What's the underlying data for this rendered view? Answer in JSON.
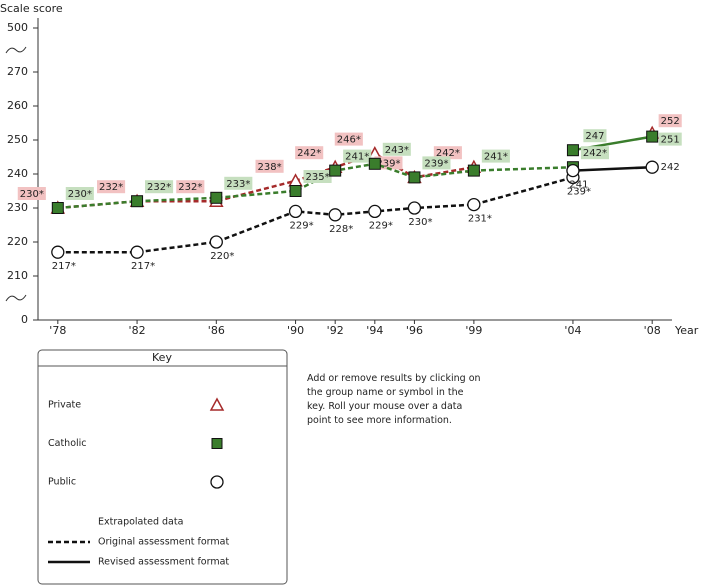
{
  "chart_data": {
    "type": "line",
    "y_label": "Scale score",
    "x_label": "Year",
    "x": [
      1978,
      1982,
      1986,
      1990,
      1992,
      1994,
      1996,
      1999,
      2004,
      2008
    ],
    "xlim": [
      1977,
      2009
    ],
    "xticks": [
      {
        "value": 1978,
        "label": "'78"
      },
      {
        "value": 1982,
        "label": "'82"
      },
      {
        "value": 1986,
        "label": "'86"
      },
      {
        "value": 1990,
        "label": "'90"
      },
      {
        "value": 1992,
        "label": "'92"
      },
      {
        "value": 1994,
        "label": "'94"
      },
      {
        "value": 1996,
        "label": "'96"
      },
      {
        "value": 1999,
        "label": "'99"
      },
      {
        "value": 2004,
        "label": "'04"
      },
      {
        "value": 2008,
        "label": "'08"
      }
    ],
    "ylim": [
      0,
      500
    ],
    "yticks": [
      0,
      210,
      220,
      230,
      240,
      250,
      260,
      270,
      500
    ],
    "axis_break": true,
    "series": [
      {
        "name": "Private",
        "color": "#a52a2a",
        "label_color": "#f2c2c2",
        "marker": "triangle",
        "values": [
          230,
          232,
          232,
          238,
          242,
          246,
          239,
          242,
          null,
          null
        ],
        "value_labels": [
          "230*",
          "232*",
          "232*",
          "238*",
          "242*",
          "246*",
          "239*",
          "242*",
          null,
          null
        ],
        "revised_values": [
          null,
          null,
          null,
          null,
          null,
          null,
          null,
          null,
          null,
          252
        ],
        "revised_value_labels": [
          null,
          null,
          null,
          null,
          null,
          null,
          null,
          null,
          null,
          "252"
        ]
      },
      {
        "name": "Catholic",
        "color": "#3a7d2c",
        "label_color": "#c6dfbf",
        "marker": "square",
        "values": [
          230,
          232,
          233,
          235,
          241,
          243,
          239,
          241,
          242,
          null
        ],
        "value_labels": [
          "230*",
          "232*",
          "233*",
          "235*",
          "241*",
          "243*",
          "239*",
          "241*",
          "242*",
          null
        ],
        "revised_values": [
          null,
          null,
          null,
          null,
          null,
          null,
          null,
          null,
          247,
          251
        ],
        "revised_value_labels": [
          null,
          null,
          null,
          null,
          null,
          null,
          null,
          null,
          "247",
          "251"
        ]
      },
      {
        "name": "Public",
        "color": "#111111",
        "label_color": null,
        "marker": "circle",
        "values": [
          217,
          217,
          220,
          229,
          228,
          229,
          230,
          231,
          239,
          null
        ],
        "value_labels": [
          "217*",
          "217*",
          "220*",
          "229*",
          "228*",
          "229*",
          "230*",
          "231*",
          "239*",
          null
        ],
        "revised_values": [
          null,
          null,
          null,
          null,
          null,
          null,
          null,
          null,
          241,
          242
        ],
        "revised_value_labels": [
          null,
          null,
          null,
          null,
          null,
          null,
          null,
          null,
          "241",
          "242"
        ]
      }
    ],
    "key": {
      "title": "Key",
      "title_color": "#8a2a8a",
      "format_title": "Extrapolated data",
      "original": "Original assessment format",
      "revised": "Revised assessment format"
    },
    "note": "Add or remove results by clicking on the group name or symbol in the key. Roll your mouse over a data point to see more information."
  }
}
